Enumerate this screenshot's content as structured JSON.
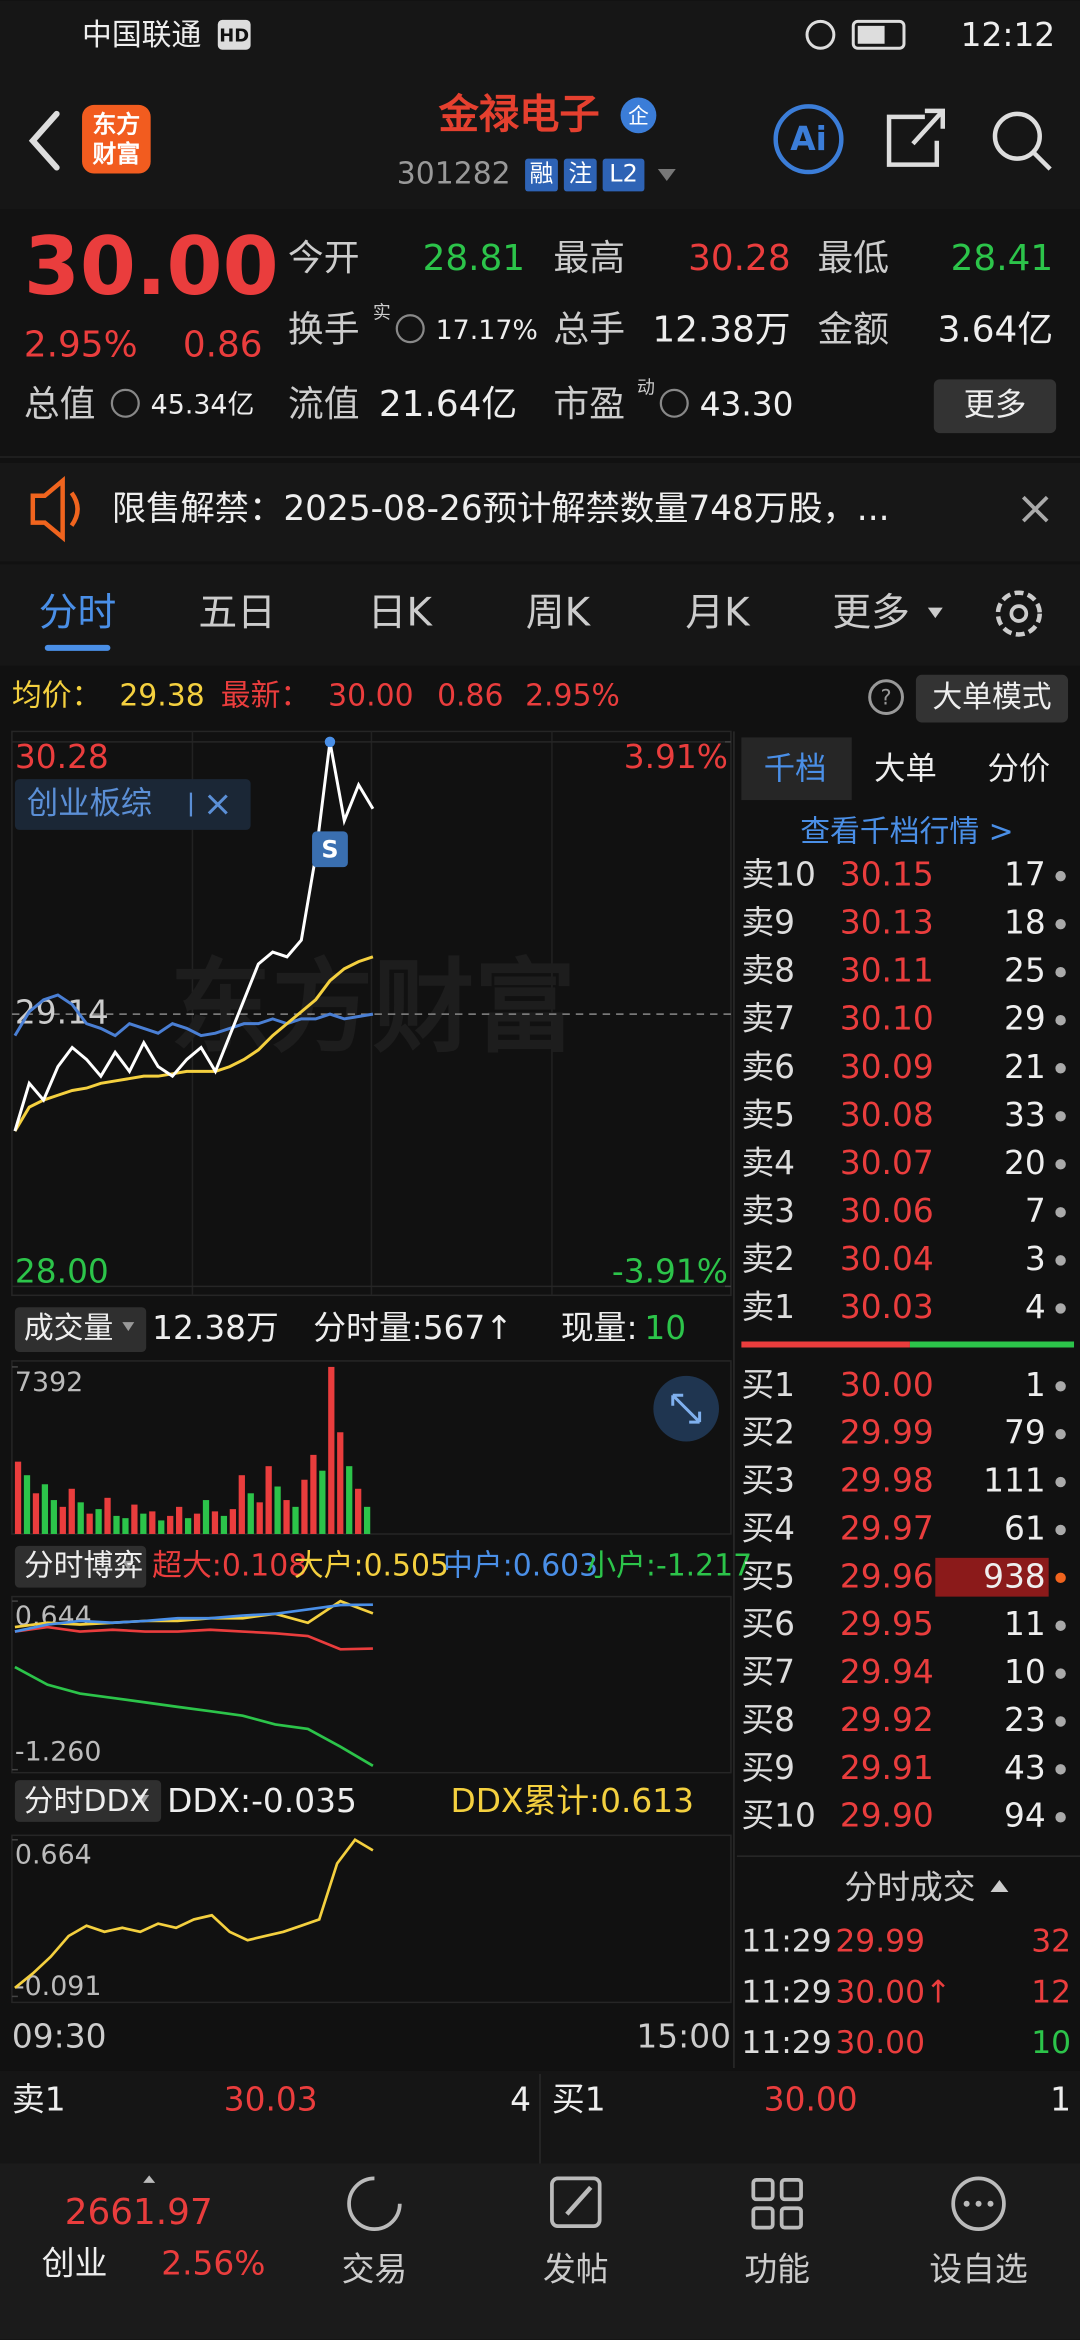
{
  "status_bar": {
    "carrier": "中国联通",
    "hd": "HD",
    "time": "12:12"
  },
  "header": {
    "logo": [
      "东方",
      "财富"
    ],
    "title": "金禄电子",
    "badge": "企",
    "code": "301282",
    "tags": [
      "融",
      "注",
      "L2"
    ],
    "ai": "Ai"
  },
  "quote": {
    "price": "30.00",
    "change_pct": "2.95%",
    "change": "0.86",
    "fields": [
      {
        "label": "今开",
        "value": "28.81"
      },
      {
        "label": "最高",
        "value": "30.28"
      },
      {
        "label": "最低",
        "value": "28.41"
      },
      {
        "label": "换手",
        "sup": "实",
        "value": "17.17%"
      },
      {
        "label": "总手",
        "value": "12.38万"
      },
      {
        "label": "金额",
        "value": "3.64亿"
      },
      {
        "label": "总值",
        "value": "45.34亿"
      },
      {
        "label": "流值",
        "value": "21.64亿"
      },
      {
        "label": "市盈",
        "sup": "动",
        "value": "43.30"
      }
    ],
    "more": "更多"
  },
  "notice": "限售解禁：2025-08-26预计解禁数量748万股，...",
  "tabs": [
    "分时",
    "五日",
    "日K",
    "周K",
    "月K",
    "更多"
  ],
  "info_bar": {
    "avg_label": "均价：",
    "avg": "29.38",
    "latest_label": "最新：",
    "latest": "30.00",
    "change": "0.86",
    "change_pct": "2.95%",
    "mode": "大单模式"
  },
  "price_chart": {
    "type": "line",
    "ylim": [
      28,
      30.28
    ],
    "yticks": [
      30.28,
      29.14,
      {
        "value": 28,
        "label": "28.00"
      }
    ],
    "y2lim": [
      -3.91,
      3.91
    ],
    "y2ticks": [
      {
        "value": 3.91,
        "label": "3.91%"
      },
      {
        "value": -3.91,
        "label": "-3.91%"
      }
    ],
    "xticks": [
      "09:30",
      "15:00"
    ],
    "watermark": "东方财富",
    "signal": "S",
    "series": [
      {
        "color": "#ffffff",
        "values": [
          28.65,
          28.85,
          28.78,
          28.92,
          29.0,
          28.95,
          28.88,
          28.98,
          28.9,
          29.02,
          28.92,
          28.88,
          28.95,
          29.0,
          28.9,
          29.05,
          29.2,
          29.35,
          29.4,
          29.38,
          29.45,
          29.8,
          30.28,
          29.95,
          30.1,
          30.0
        ]
      },
      {
        "color": "#f4d03f",
        "values": [
          28.65,
          28.75,
          28.78,
          28.8,
          28.82,
          28.83,
          28.85,
          28.86,
          28.87,
          28.88,
          28.88,
          28.89,
          28.9,
          28.9,
          28.9,
          28.92,
          28.95,
          28.99,
          29.05,
          29.1,
          29.15,
          29.2,
          29.28,
          29.33,
          29.36,
          29.38
        ]
      },
      {
        "name": "创业板综",
        "color": "#4a7fd4",
        "values": [
          29.05,
          29.15,
          29.2,
          29.22,
          29.18,
          29.1,
          29.08,
          29.05,
          29.1,
          29.08,
          29.06,
          29.1,
          29.08,
          29.05,
          29.06,
          29.08,
          29.1,
          29.1,
          29.12,
          29.1,
          29.12,
          29.12,
          29.14,
          29.12,
          29.13,
          29.14
        ]
      }
    ]
  },
  "volume_chart": {
    "type": "bar",
    "label": "成交量",
    "total": "12.38万",
    "minute": "分时量:567↑",
    "current_label": "现量:",
    "current": "10",
    "ylim": [
      0,
      7392
    ],
    "yticks": [
      7392
    ],
    "values": [
      3200,
      2600,
      1800,
      2200,
      1500,
      1200,
      2000,
      1400,
      900,
      1100,
      1600,
      800,
      700,
      1300,
      900,
      1000,
      600,
      800,
      1200,
      700,
      900,
      1500,
      1000,
      800,
      1100,
      2600,
      1800,
      1400,
      3000,
      2100,
      1500,
      1200,
      2400,
      3500,
      2800,
      7392,
      4500,
      3000,
      2000,
      1200
    ],
    "direction": [
      "up",
      "down",
      "up",
      "down",
      "down",
      "up",
      "up",
      "down",
      "up",
      "down",
      "up",
      "down",
      "down",
      "up",
      "down",
      "up",
      "down",
      "up",
      "up",
      "down",
      "up",
      "down",
      "up",
      "down",
      "up",
      "up",
      "down",
      "up",
      "up",
      "down",
      "up",
      "down",
      "up",
      "up",
      "down",
      "up",
      "up",
      "down",
      "up",
      "down"
    ],
    "colors": {
      "up": "#ea3d3d",
      "down": "#2cc44a"
    }
  },
  "game_chart": {
    "type": "line",
    "label": "分时博弈",
    "ylim": [
      -1.26,
      0.644
    ],
    "yticks": [
      0.644,
      {
        "value": -1.26,
        "label": "-1.260"
      }
    ],
    "series": [
      {
        "name": "超大:0.108",
        "color": "#ea3d3d",
        "values": [
          0.3,
          0.35,
          0.3,
          0.32,
          0.3,
          0.3,
          0.32,
          0.3,
          0.28,
          0.25,
          0.1,
          0.108
        ]
      },
      {
        "name": "大户:0.505",
        "color": "#f4d03f",
        "values": [
          0.35,
          0.4,
          0.38,
          0.4,
          0.42,
          0.42,
          0.45,
          0.45,
          0.5,
          0.4,
          0.644,
          0.505
        ]
      },
      {
        "name": "中户:0.603",
        "color": "#4a8fe7",
        "values": [
          0.3,
          0.38,
          0.42,
          0.4,
          0.42,
          0.45,
          0.45,
          0.48,
          0.5,
          0.55,
          0.6,
          0.603
        ]
      },
      {
        "name": "小户:-1.217",
        "color": "#2cc44a",
        "values": [
          -0.1,
          -0.3,
          -0.4,
          -0.45,
          -0.5,
          -0.55,
          -0.6,
          -0.65,
          -0.75,
          -0.8,
          -1.0,
          -1.217
        ]
      }
    ]
  },
  "ddx_chart": {
    "type": "line",
    "label": "分时DDX",
    "ddx": "DDX:-0.035",
    "cumulative": "DDX累计:0.613",
    "ylim": [
      -0.091,
      0.664
    ],
    "yticks": [
      0.664,
      -0.091
    ],
    "series": [
      {
        "color": "#f4d03f",
        "values": [
          -0.05,
          0.02,
          0.1,
          0.2,
          0.25,
          0.22,
          0.24,
          0.22,
          0.26,
          0.24,
          0.28,
          0.3,
          0.22,
          0.18,
          0.2,
          0.22,
          0.25,
          0.28,
          0.55,
          0.664,
          0.613
        ]
      }
    ]
  },
  "order_book": {
    "tabs": [
      "千档",
      "大单",
      "分价"
    ],
    "link": "查看千档行情 >",
    "asks": [
      {
        "label": "卖10",
        "price": "30.15",
        "volume": "17"
      },
      {
        "label": "卖9",
        "price": "30.13",
        "volume": "18"
      },
      {
        "label": "卖8",
        "price": "30.11",
        "volume": "25"
      },
      {
        "label": "卖7",
        "price": "30.10",
        "volume": "29"
      },
      {
        "label": "卖6",
        "price": "30.09",
        "volume": "21"
      },
      {
        "label": "卖5",
        "price": "30.08",
        "volume": "33"
      },
      {
        "label": "卖4",
        "price": "30.07",
        "volume": "20"
      },
      {
        "label": "卖3",
        "price": "30.06",
        "volume": "7"
      },
      {
        "label": "卖2",
        "price": "30.04",
        "volume": "3"
      },
      {
        "label": "卖1",
        "price": "30.03",
        "volume": "4"
      }
    ],
    "bids": [
      {
        "label": "买1",
        "price": "30.00",
        "volume": "1"
      },
      {
        "label": "买2",
        "price": "29.99",
        "volume": "79"
      },
      {
        "label": "买3",
        "price": "29.98",
        "volume": "111"
      },
      {
        "label": "买4",
        "price": "29.97",
        "volume": "61"
      },
      {
        "label": "买5",
        "price": "29.96",
        "volume": "938"
      },
      {
        "label": "买6",
        "price": "29.95",
        "volume": "11"
      },
      {
        "label": "买7",
        "price": "29.94",
        "volume": "10"
      },
      {
        "label": "买8",
        "price": "29.92",
        "volume": "23"
      },
      {
        "label": "买9",
        "price": "29.91",
        "volume": "43"
      },
      {
        "label": "买10",
        "price": "29.90",
        "volume": "94"
      }
    ],
    "trades_title": "分时成交",
    "trades": [
      {
        "time": "11:29",
        "price": "29.99",
        "volume": "32"
      },
      {
        "time": "11:29",
        "price": "30.00↑",
        "volume": "12"
      },
      {
        "time": "11:29",
        "price": "30.00",
        "volume": "10"
      }
    ]
  },
  "bottom_quote": {
    "ask_label": "卖1",
    "ask_price": "30.03",
    "ask_volume": "4",
    "bid_label": "买1",
    "bid_price": "30.00",
    "bid_volume": "1"
  },
  "nav": {
    "index_value": "2661.97",
    "index_name": "创业",
    "index_change": "2.56%",
    "items": [
      "交易",
      "发帖",
      "功能",
      "设自选"
    ]
  }
}
